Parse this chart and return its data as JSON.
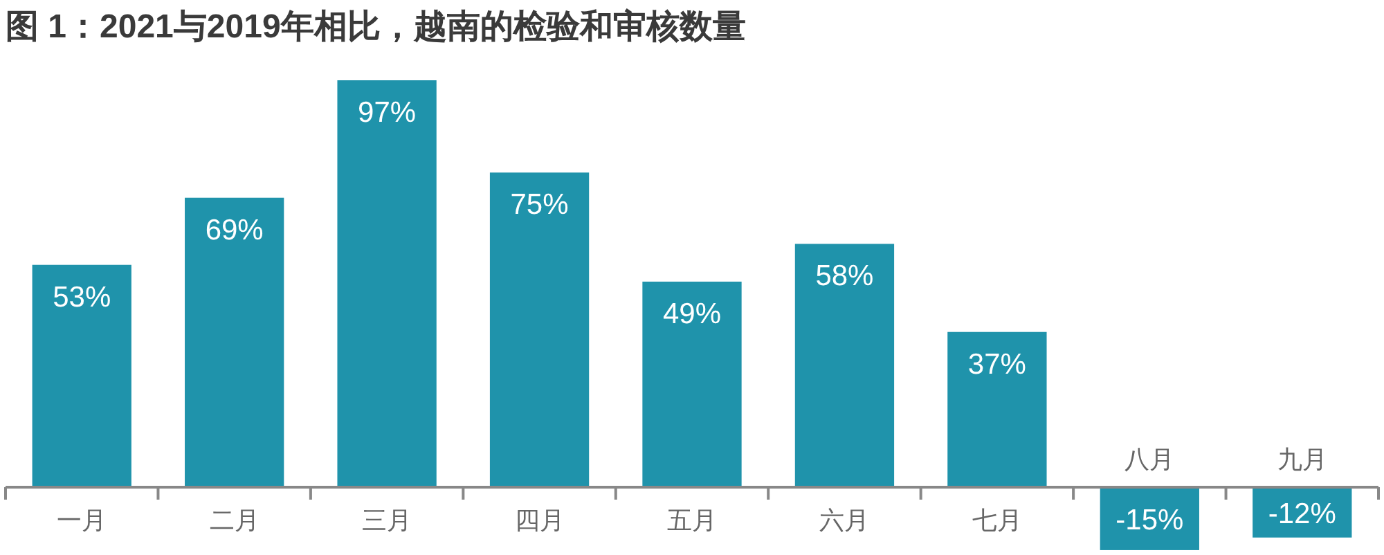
{
  "chart_data": {
    "type": "bar",
    "title": "图 1：2021与2019年相比，越南的检验和审核数量",
    "categories": [
      "一月",
      "二月",
      "三月",
      "四月",
      "五月",
      "六月",
      "七月",
      "八月",
      "九月"
    ],
    "values": [
      53,
      69,
      97,
      75,
      49,
      58,
      37,
      -15,
      -12
    ],
    "value_labels": [
      "53%",
      "69%",
      "97%",
      "75%",
      "49%",
      "58%",
      "37%",
      "-15%",
      "-12%"
    ],
    "color": "#1f93ab"
  }
}
